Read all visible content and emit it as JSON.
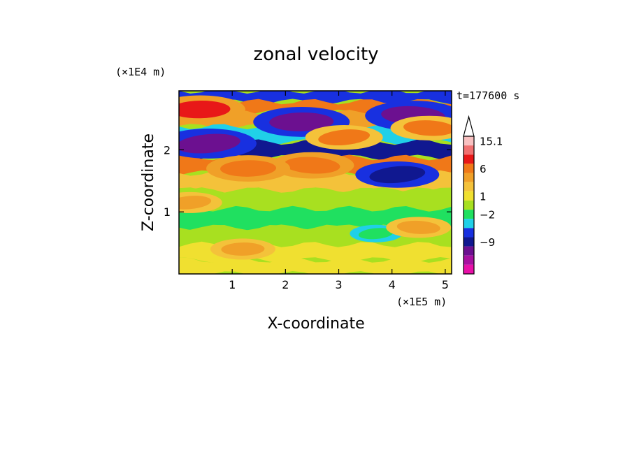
{
  "chart_data": {
    "type": "heatmap",
    "title": "zonal velocity",
    "xlabel": "X-coordinate",
    "ylabel": "Z-coordinate",
    "x_unit": "(×1E5 m)",
    "y_unit": "(×1E4 m)",
    "time_label": "t=177600 s",
    "xlim": [
      0,
      5.12
    ],
    "ylim": [
      0,
      2.95
    ],
    "x_ticks": [
      1,
      2,
      3,
      4,
      5
    ],
    "y_ticks": [
      1,
      2
    ],
    "colorbar": {
      "labels": [
        "15.1",
        "6",
        "1",
        "−2",
        "−9"
      ],
      "label_values": [
        15.1,
        6,
        1,
        -2,
        -9
      ],
      "colors_top_to_bottom": [
        "#f8c0c0",
        "#f07070",
        "#e81818",
        "#f07818",
        "#f0a028",
        "#f4c23a",
        "#f0e030",
        "#a8e020",
        "#20e060",
        "#20d0e8",
        "#1830e0",
        "#101890",
        "#6c1090",
        "#a810a0",
        "#e810a8"
      ],
      "extend": "max"
    },
    "bands": [
      {
        "y": 2.85,
        "value": -4
      },
      {
        "y": 2.7,
        "value": 6
      },
      {
        "y": 2.5,
        "value": 3
      },
      {
        "y": 2.25,
        "value": -2
      },
      {
        "y": 2.0,
        "value": -6
      },
      {
        "y": 1.75,
        "value": 6
      },
      {
        "y": 1.5,
        "value": 2
      },
      {
        "y": 1.2,
        "value": 0
      },
      {
        "y": 0.9,
        "value": -1
      },
      {
        "y": 0.6,
        "value": 0
      },
      {
        "y": 0.35,
        "value": 1
      },
      {
        "y": 0.1,
        "value": 1
      }
    ],
    "features": [
      {
        "x": 0.55,
        "y": 2.1,
        "value": -8
      },
      {
        "x": 2.3,
        "y": 2.45,
        "value": -8
      },
      {
        "x": 4.4,
        "y": 2.55,
        "value": -8
      },
      {
        "x": 4.1,
        "y": 1.6,
        "value": -6
      },
      {
        "x": 0.4,
        "y": 2.65,
        "value": 7
      },
      {
        "x": 2.5,
        "y": 1.75,
        "value": 6
      },
      {
        "x": 3.1,
        "y": 2.2,
        "value": 5
      },
      {
        "x": 1.3,
        "y": 1.7,
        "value": 6
      },
      {
        "x": 4.7,
        "y": 2.35,
        "value": 5
      },
      {
        "x": 3.7,
        "y": 0.65,
        "value": -1
      },
      {
        "x": 1.2,
        "y": 0.4,
        "value": 3
      },
      {
        "x": 4.5,
        "y": 0.75,
        "value": 3
      },
      {
        "x": 0.2,
        "y": 1.15,
        "value": 3
      }
    ]
  }
}
